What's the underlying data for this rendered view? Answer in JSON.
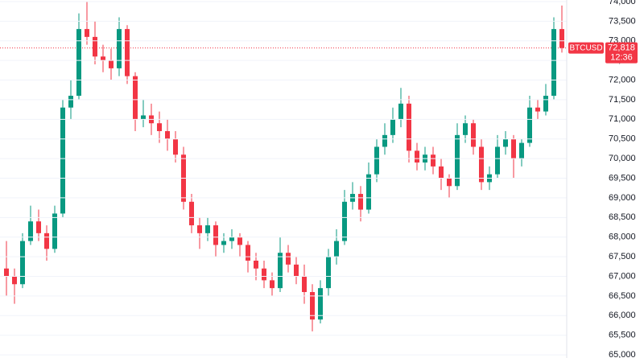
{
  "chart_data": {
    "type": "candlestick",
    "symbol": "BTCUSD",
    "last_price": {
      "value": 72818,
      "label": "72,818"
    },
    "countdown": "12:36",
    "up_color": "#089981",
    "down_color": "#f23645",
    "grid": true,
    "ylim": [
      64920,
      74040
    ],
    "yticks": [
      {
        "value": 65000,
        "label": "65,000"
      },
      {
        "value": 65500,
        "label": "65,500"
      },
      {
        "value": 66000,
        "label": "66,000"
      },
      {
        "value": 66500,
        "label": "66,500"
      },
      {
        "value": 67000,
        "label": "67,000"
      },
      {
        "value": 67500,
        "label": "67,500"
      },
      {
        "value": 68000,
        "label": "68,000"
      },
      {
        "value": 68500,
        "label": "68,500"
      },
      {
        "value": 69000,
        "label": "69,000"
      },
      {
        "value": 69500,
        "label": "69,500"
      },
      {
        "value": 70000,
        "label": "70,000"
      },
      {
        "value": 70500,
        "label": "70,500"
      },
      {
        "value": 71000,
        "label": "71,000"
      },
      {
        "value": 71500,
        "label": "71,500"
      },
      {
        "value": 72000,
        "label": "72,000"
      },
      {
        "value": 72500,
        "label": "72,500"
      },
      {
        "value": 73000,
        "label": "73,000"
      },
      {
        "value": 73500,
        "label": "73,500"
      },
      {
        "value": 74000,
        "label": "74,000"
      }
    ],
    "open": [
      67200,
      67000,
      66800,
      67900,
      68400,
      68100,
      67700,
      68600,
      71300,
      71600,
      73300,
      73100,
      72600,
      72500,
      72300,
      73300,
      72100,
      71000,
      71100,
      70900,
      70700,
      70500,
      70100,
      68900,
      68300,
      68100,
      68300,
      67800,
      67900,
      68000,
      67800,
      67400,
      67200,
      66900,
      66700,
      67600,
      67300,
      67000,
      66600,
      65900,
      66700,
      67500,
      67900,
      68900,
      69100,
      68700,
      69600,
      70300,
      70600,
      71000,
      71400,
      70200,
      69900,
      70100,
      69800,
      69500,
      69300,
      70600,
      70900,
      70300,
      69400,
      69600,
      70300,
      70500,
      70000,
      70400,
      71300,
      71200,
      71600,
      73300
    ],
    "high": [
      67900,
      67200,
      68100,
      68800,
      68700,
      68300,
      68800,
      71500,
      72000,
      73700,
      74000,
      73500,
      72900,
      72800,
      73600,
      73400,
      72200,
      71500,
      71400,
      71200,
      71000,
      70700,
      70300,
      69100,
      68500,
      68500,
      68400,
      68100,
      68200,
      68100,
      67900,
      67600,
      67400,
      67100,
      68000,
      67800,
      67500,
      67300,
      66800,
      66900,
      67700,
      68200,
      69200,
      69400,
      69300,
      69900,
      70500,
      70900,
      71300,
      71800,
      71600,
      70400,
      70300,
      70300,
      70000,
      69600,
      70900,
      71100,
      71000,
      70500,
      69800,
      70600,
      70700,
      70600,
      70500,
      71600,
      71500,
      71900,
      73600,
      73900
    ],
    "low": [
      66500,
      66300,
      66700,
      67800,
      67900,
      67400,
      67600,
      68500,
      71000,
      71500,
      72900,
      72400,
      72200,
      72000,
      72100,
      71900,
      70700,
      70800,
      70600,
      70400,
      70200,
      69900,
      68700,
      68100,
      67700,
      67900,
      67500,
      67600,
      67700,
      67500,
      67100,
      66900,
      66700,
      66500,
      66600,
      67100,
      66800,
      66300,
      65600,
      65800,
      66500,
      67300,
      67800,
      68700,
      68400,
      68600,
      69400,
      70100,
      70400,
      70800,
      69900,
      69700,
      69700,
      69600,
      69200,
      69000,
      69200,
      70400,
      70100,
      69200,
      69200,
      69500,
      70100,
      69500,
      69800,
      70300,
      71000,
      71100,
      71500,
      72700
    ],
    "close": [
      67000,
      66800,
      67900,
      68400,
      68100,
      67700,
      68600,
      71300,
      71600,
      73300,
      73100,
      72600,
      72500,
      72300,
      73300,
      72100,
      71000,
      71100,
      70900,
      70700,
      70500,
      70100,
      68900,
      68300,
      68100,
      68300,
      67800,
      67900,
      68000,
      67800,
      67400,
      67200,
      66900,
      66700,
      67600,
      67300,
      67000,
      66600,
      65900,
      66700,
      67500,
      67900,
      68900,
      69100,
      68700,
      69600,
      70300,
      70600,
      71000,
      71400,
      70200,
      69900,
      70100,
      69800,
      69500,
      69300,
      70600,
      70900,
      70300,
      69400,
      69600,
      70300,
      70500,
      70000,
      70400,
      71300,
      71200,
      71600,
      73300,
      72818
    ]
  }
}
